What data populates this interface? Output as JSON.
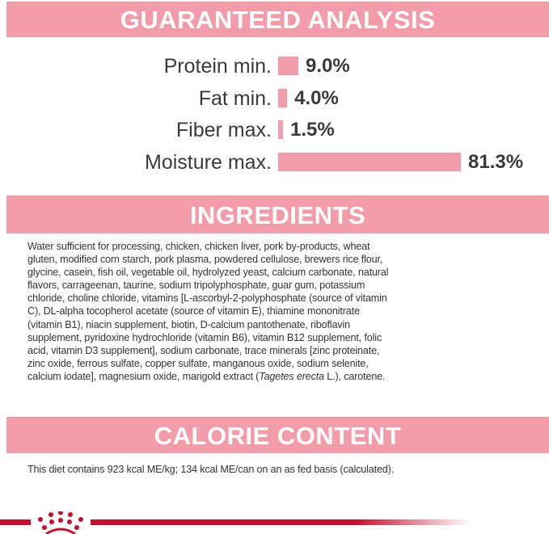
{
  "analysis": {
    "title": "GUARANTEED ANALYSIS",
    "rows": [
      {
        "label": "Protein min.",
        "value": "9.0%",
        "percent": 9.0
      },
      {
        "label": "Fat min.",
        "value": "4.0%",
        "percent": 4.0
      },
      {
        "label": "Fiber max.",
        "value": "1.5%",
        "percent": 1.5
      },
      {
        "label": "Moisture max.",
        "value": "81.3%",
        "percent": 81.3
      }
    ],
    "bar_color": "#f39ca9"
  },
  "ingredients": {
    "title": "INGREDIENTS",
    "lines": [
      "Water sufficient for processing, chicken, chicken liver, pork by-products, wheat",
      "gluten, modified corn starch, pork plasma, powdered cellulose, brewers rice flour,",
      "glycine, casein, fish oil, vegetable oil, hydrolyzed yeast, calcium carbonate, natural",
      "flavors, carrageenan, taurine, sodium tripolyphosphate, guar gum, potassium",
      "chloride, choline chloride, vitamins [L-ascorbyl-2-polyphosphate (source of vitamin",
      "C), DL-alpha tocopherol acetate (source of vitamin E), thiamine mononitrate",
      "(vitamin B1), niacin supplement, biotin, D-calcium pantothenate, riboflavin",
      "supplement, pyridoxine hydrochloride (vitamin B6), vitamin B12 supplement, folic",
      "acid, vitamin D3 supplement], sodium carbonate, trace minerals [zinc proteinate,",
      "zinc oxide, ferrous sulfate, copper sulfate, manganous oxide, sodium selenite,"
    ],
    "last_line": {
      "before": "calcium iodate], magnesium oxide, marigold extract (",
      "italic": "Tagetes erecta",
      "after": " L.), carotene."
    }
  },
  "calorie": {
    "title": "CALORIE CONTENT",
    "text": "This diet contains 923 kcal ME/kg; 134 kcal ME/can on an as fed basis (calculated)."
  },
  "brand": {
    "logo": "crown-logo",
    "color": "#c8102e"
  }
}
